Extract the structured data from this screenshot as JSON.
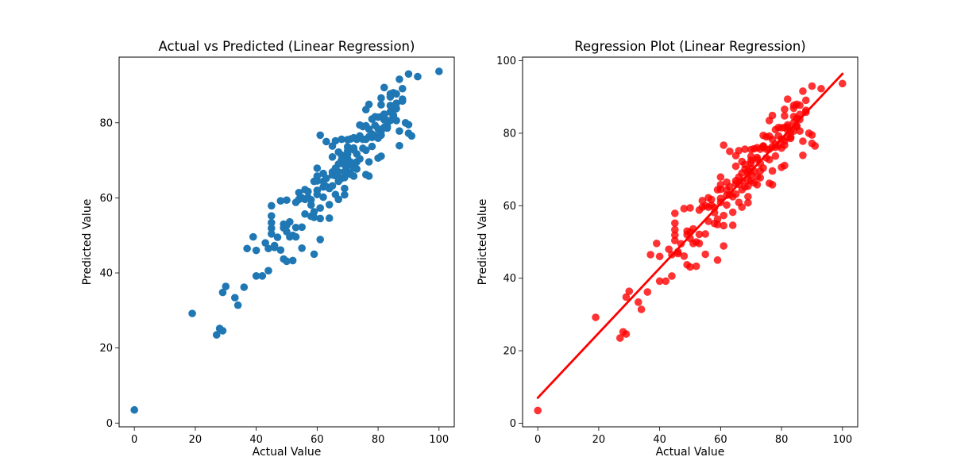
{
  "chart_data": [
    {
      "type": "scatter",
      "title": "Actual vs Predicted (Linear Regression)",
      "xlabel": "Actual Value",
      "ylabel": "Predicted Value",
      "xlim": [
        -5,
        105
      ],
      "ylim": [
        -1,
        97.5
      ],
      "xticks": [
        0,
        20,
        40,
        60,
        80,
        100
      ],
      "yticks": [
        0,
        20,
        40,
        60,
        80
      ],
      "grid": false,
      "point_color": "#1f77b4",
      "points": [
        [
          0,
          3.5
        ],
        [
          19,
          29.2
        ],
        [
          27,
          23.5
        ],
        [
          28,
          25.2
        ],
        [
          29,
          24.6
        ],
        [
          29,
          34.8
        ],
        [
          30,
          36.4
        ],
        [
          33,
          33.4
        ],
        [
          34,
          31.4
        ],
        [
          36,
          36.2
        ],
        [
          37,
          46.5
        ],
        [
          39,
          49.6
        ],
        [
          40,
          46.0
        ],
        [
          40,
          39.2
        ],
        [
          42,
          39.2
        ],
        [
          43,
          48.0
        ],
        [
          44,
          46.5
        ],
        [
          44,
          40.6
        ],
        [
          45,
          55.2
        ],
        [
          45,
          57.9
        ],
        [
          45,
          53.4
        ],
        [
          45,
          51.9
        ],
        [
          45,
          50.4
        ],
        [
          46,
          46.8
        ],
        [
          46,
          47.3
        ],
        [
          47,
          49.5
        ],
        [
          48,
          46.1
        ],
        [
          48,
          59.2
        ],
        [
          49,
          53.0
        ],
        [
          49,
          52.0
        ],
        [
          49,
          43.7
        ],
        [
          50,
          52.7
        ],
        [
          50,
          59.4
        ],
        [
          50,
          51.0
        ],
        [
          50,
          43.1
        ],
        [
          51,
          53.6
        ],
        [
          51,
          49.6
        ],
        [
          52,
          50.0
        ],
        [
          52,
          43.3
        ],
        [
          53,
          58.8
        ],
        [
          53,
          52.1
        ],
        [
          53,
          49.6
        ],
        [
          54,
          59.6
        ],
        [
          54,
          61.4
        ],
        [
          55,
          60.0
        ],
        [
          55,
          52.2
        ],
        [
          55,
          46.6
        ],
        [
          56,
          62.2
        ],
        [
          56,
          59.6
        ],
        [
          56,
          55.7
        ],
        [
          57,
          61.7
        ],
        [
          57,
          60.1
        ],
        [
          58,
          59.5
        ],
        [
          58,
          58.1
        ],
        [
          58,
          55.1
        ],
        [
          59,
          64.4
        ],
        [
          59,
          56.3
        ],
        [
          59,
          54.8
        ],
        [
          59,
          45.0
        ],
        [
          60,
          65.8
        ],
        [
          60,
          67.9
        ],
        [
          60,
          64.5
        ],
        [
          60,
          60.9
        ],
        [
          60,
          62.0
        ],
        [
          61,
          76.7
        ],
        [
          61,
          57.3
        ],
        [
          61,
          48.9
        ],
        [
          61,
          54.5
        ],
        [
          62,
          66.5
        ],
        [
          62,
          64.4
        ],
        [
          62,
          62.9
        ],
        [
          62,
          60.2
        ],
        [
          63,
          65.2
        ],
        [
          63,
          63.0
        ],
        [
          63,
          75.0
        ],
        [
          64,
          62.5
        ],
        [
          64,
          54.6
        ],
        [
          64,
          58.2
        ],
        [
          65,
          66.9
        ],
        [
          65,
          70.9
        ],
        [
          65,
          73.8
        ],
        [
          65,
          63.2
        ],
        [
          65,
          66.1
        ],
        [
          66,
          65.9
        ],
        [
          66,
          75.2
        ],
        [
          66,
          67.9
        ],
        [
          66,
          60.9
        ],
        [
          67,
          72.2
        ],
        [
          67,
          64.4
        ],
        [
          67,
          59.6
        ],
        [
          67,
          69.0
        ],
        [
          67,
          66.9
        ],
        [
          68,
          75.6
        ],
        [
          68,
          71.4
        ],
        [
          68,
          65.2
        ],
        [
          68,
          70.1
        ],
        [
          69,
          60.8
        ],
        [
          69,
          67.0
        ],
        [
          69,
          68.8
        ],
        [
          69,
          69.7
        ],
        [
          69,
          62.5
        ],
        [
          69,
          65.4
        ],
        [
          70,
          75.5
        ],
        [
          70,
          66.9
        ],
        [
          70,
          68.6
        ],
        [
          70,
          70.4
        ],
        [
          70,
          72.5
        ],
        [
          70,
          73.6
        ],
        [
          70,
          71.7
        ],
        [
          71,
          75.7
        ],
        [
          71,
          66.3
        ],
        [
          71,
          69.5
        ],
        [
          72,
          68.0
        ],
        [
          72,
          65.8
        ],
        [
          72,
          72.8
        ],
        [
          72,
          73.3
        ],
        [
          72,
          76.0
        ],
        [
          73,
          75.6
        ],
        [
          73,
          71.7
        ],
        [
          73,
          67.7
        ],
        [
          73,
          69.6
        ],
        [
          74,
          76.1
        ],
        [
          74,
          76.5
        ],
        [
          74,
          79.4
        ],
        [
          74,
          76.3
        ],
        [
          74,
          70.4
        ],
        [
          75,
          79.0
        ],
        [
          75,
          75.6
        ],
        [
          75,
          73.2
        ],
        [
          76,
          72.7
        ],
        [
          76,
          66.2
        ],
        [
          76,
          83.5
        ],
        [
          76,
          79.2
        ],
        [
          76,
          75.6
        ],
        [
          77,
          65.8
        ],
        [
          77,
          69.6
        ],
        [
          77,
          84.9
        ],
        [
          77,
          76.3
        ],
        [
          77,
          78.3
        ],
        [
          78,
          76.1
        ],
        [
          78,
          81.0
        ],
        [
          78,
          77.0
        ],
        [
          78,
          73.7
        ],
        [
          79,
          79.3
        ],
        [
          79,
          81.6
        ],
        [
          79,
          76.6
        ],
        [
          80,
          81.5
        ],
        [
          80,
          78.4
        ],
        [
          80,
          75.9
        ],
        [
          80,
          70.6
        ],
        [
          81,
          84.8
        ],
        [
          81,
          76.7
        ],
        [
          81,
          77.8
        ],
        [
          81,
          81.6
        ],
        [
          81,
          86.6
        ],
        [
          81,
          71.1
        ],
        [
          82,
          89.4
        ],
        [
          82,
          80.8
        ],
        [
          82,
          81.7
        ],
        [
          82,
          82.3
        ],
        [
          82,
          78.8
        ],
        [
          83,
          79.0
        ],
        [
          83,
          78.6
        ],
        [
          83,
          80.5
        ],
        [
          84,
          80.6
        ],
        [
          84,
          84.6
        ],
        [
          84,
          87.7
        ],
        [
          84,
          82.9
        ],
        [
          84,
          86.9
        ],
        [
          85,
          84.1
        ],
        [
          85,
          81.8
        ],
        [
          85,
          88.0
        ],
        [
          85,
          82.1
        ],
        [
          86,
          85.2
        ],
        [
          86,
          83.8
        ],
        [
          86,
          87.7
        ],
        [
          86,
          80.6
        ],
        [
          87,
          91.6
        ],
        [
          87,
          73.9
        ],
        [
          87,
          77.8
        ],
        [
          88,
          89.1
        ],
        [
          88,
          86.3
        ],
        [
          88,
          85.8
        ],
        [
          89,
          80.0
        ],
        [
          90,
          93.0
        ],
        [
          90,
          79.5
        ],
        [
          90,
          77.2
        ],
        [
          91,
          76.5
        ],
        [
          93,
          92.3
        ],
        [
          100,
          93.7
        ]
      ]
    },
    {
      "type": "scatter",
      "title": "Regression Plot (Linear Regression)",
      "xlabel": "Actual Value",
      "ylabel": "Predicted Value",
      "xlim": [
        -5,
        105
      ],
      "ylim": [
        -1,
        101
      ],
      "xticks": [
        0,
        20,
        40,
        60,
        80,
        100
      ],
      "yticks": [
        0,
        20,
        40,
        60,
        80,
        100
      ],
      "grid": false,
      "point_color": "#ff0000",
      "line_color": "#ff0000",
      "regression_line": [
        [
          0,
          7.0
        ],
        [
          100,
          96.4
        ]
      ],
      "points_source": "same as chart 1"
    }
  ]
}
